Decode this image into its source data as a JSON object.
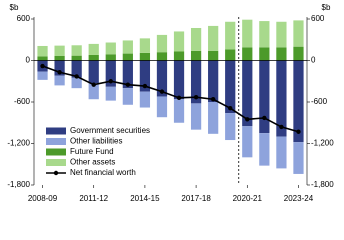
{
  "chart_data": {
    "type": "bar",
    "ylabel": "$b",
    "y2label": "$b",
    "categories": [
      "2008-09",
      null,
      null,
      "2011-12",
      null,
      null,
      "2014-15",
      null,
      null,
      "2017-18",
      null,
      null,
      "2020-21",
      null,
      null,
      "2023-24"
    ],
    "series": [
      {
        "name": "Government securities",
        "color": "#2f3d82",
        "type": "bar",
        "values": [
          -160,
          -220,
          -250,
          -330,
          -380,
          -400,
          -450,
          -520,
          -560,
          -620,
          -600,
          -760,
          -950,
          -1050,
          -1100,
          -1180
        ]
      },
      {
        "name": "Other liabilities",
        "color": "#8ea3dc",
        "type": "bar",
        "values": [
          -120,
          -140,
          -150,
          -230,
          -200,
          -240,
          -230,
          -300,
          -340,
          -380,
          -460,
          -390,
          -450,
          -470,
          -460,
          -460
        ]
      },
      {
        "name": "Future Fund",
        "color": "#4c9a2a",
        "type": "bar",
        "values": [
          60,
          65,
          70,
          80,
          90,
          100,
          110,
          120,
          130,
          140,
          140,
          160,
          190,
          190,
          190,
          200
        ]
      },
      {
        "name": "Other assets",
        "color": "#a8d98c",
        "type": "bar",
        "values": [
          150,
          150,
          150,
          160,
          170,
          190,
          210,
          250,
          290,
          330,
          360,
          400,
          400,
          380,
          370,
          380
        ]
      },
      {
        "name": "Net financial worth",
        "color": "#000000",
        "type": "line",
        "values": [
          -80,
          -170,
          -230,
          -350,
          -300,
          -350,
          -370,
          -450,
          -540,
          -530,
          -560,
          -690,
          -850,
          -830,
          -960,
          -1030
        ]
      }
    ],
    "ylim": [
      -1800,
      600
    ],
    "yticks": [
      600,
      0,
      -600,
      {
        "value": -1200,
        "label": "-1,200"
      },
      {
        "value": -1800,
        "label": "-1,800"
      }
    ],
    "y2lim": [
      -1800,
      600
    ],
    "y2ticks": [
      600,
      0,
      -600,
      {
        "value": -1200,
        "label": "-1,200"
      },
      {
        "value": -1800,
        "label": "-1,800"
      }
    ],
    "grid": false,
    "legend": "lower left",
    "dashed_vline_before_index": 12
  }
}
